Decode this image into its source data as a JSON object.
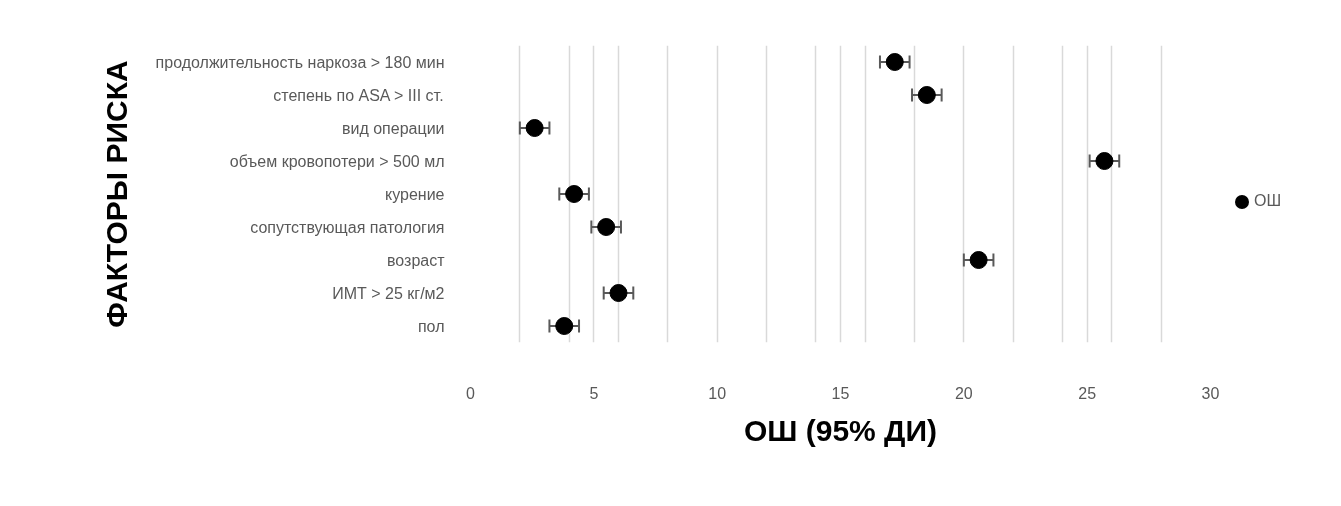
{
  "chart_data": {
    "type": "scatter",
    "orientation": "horizontal",
    "xlabel": "ОШ (95% ДИ)",
    "ylabel": "ФАКТОРЫ РИСКА",
    "categories": [
      "продолжительность наркоза > 180 мин",
      "степень по ASA > III ст.",
      "вид операции",
      "объем кровопотери > 500 мл",
      "курение",
      "сопутствующая патология",
      "возраст",
      "ИМТ > 25 кг/м2",
      "пол"
    ],
    "series": [
      {
        "name": "ОШ",
        "color": "#000000",
        "values": [
          17.2,
          18.5,
          2.6,
          25.7,
          4.2,
          5.5,
          20.6,
          6.0,
          3.8
        ],
        "errors": [
          0.6,
          0.6,
          0.6,
          0.6,
          0.6,
          0.6,
          0.6,
          0.6,
          0.6
        ]
      }
    ],
    "xlim": [
      0,
      30
    ],
    "xticks": [
      0,
      {
        "value": 2,
        "label": null
      },
      {
        "value": 4,
        "label": null
      },
      5,
      {
        "value": 6,
        "label": null
      },
      {
        "value": 8,
        "label": null
      },
      10,
      {
        "value": 12,
        "label": null
      },
      {
        "value": 14,
        "label": null
      },
      15,
      {
        "value": 16,
        "label": null
      },
      {
        "value": 18,
        "label": null
      },
      20,
      {
        "value": 22,
        "label": null
      },
      {
        "value": 24,
        "label": null
      },
      25,
      {
        "value": 26,
        "label": null
      },
      {
        "value": 28,
        "label": null
      },
      30
    ],
    "grid": "x",
    "legend": "right",
    "marker": "circle"
  }
}
